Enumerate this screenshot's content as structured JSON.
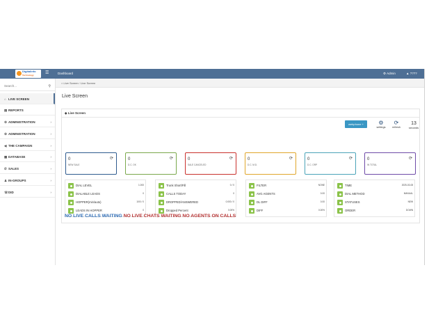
{
  "topbar": {
    "logo_text": "Digitalinfo",
    "logo_tag": "Technology",
    "title": "Dashboard",
    "admin_label": "Admin",
    "user_label": "????"
  },
  "sidebar": {
    "search_placeholder": "Search...",
    "items": [
      {
        "label": "LIVE SCREEN",
        "icon": "home-icon",
        "active": true,
        "chevron": false
      },
      {
        "label": "REPORTS",
        "icon": "report-icon",
        "active": false,
        "chevron": false
      },
      {
        "label": "ADMINISTRATION",
        "icon": "gear-icon",
        "active": false,
        "chevron": true
      },
      {
        "label": "ADMINISTRATION",
        "icon": "gear-icon",
        "active": false,
        "chevron": true
      },
      {
        "label": "THE CAMPAIGN",
        "icon": "megaphone-icon",
        "active": false,
        "chevron": true
      },
      {
        "label": "DATABASE",
        "icon": "database-icon",
        "active": false,
        "chevron": true
      },
      {
        "label": "SALES",
        "icon": "phone-icon",
        "active": false,
        "chevron": true
      },
      {
        "label": "IN-GROUPS",
        "icon": "users-icon",
        "active": false,
        "chevron": true
      },
      {
        "label": "DID",
        "icon": "phone-forward-icon",
        "active": false,
        "chevron": true
      }
    ]
  },
  "breadcrumb": {
    "home": "Live Screen",
    "current": "Live Screen"
  },
  "page_title": "Live Screen",
  "panel": {
    "title": "Live Screen",
    "webphone_label": "webphone +",
    "settings_label": "settings",
    "refresh_label": "refresh",
    "seconds_value": "13",
    "seconds_label": "seconds"
  },
  "cards": [
    {
      "value": "0",
      "label": "NEW SALE",
      "color": "#2e5a8e"
    },
    {
      "value": "0",
      "label": "D.C. OK",
      "color": "#7aa84b"
    },
    {
      "value": "0",
      "label": "SALE CANCELED",
      "color": "#c9302c"
    },
    {
      "value": "0",
      "label": "D.C. M.D.",
      "color": "#e0a62a"
    },
    {
      "value": "0",
      "label": "D.C. ORP",
      "color": "#4aa3b8"
    },
    {
      "value": "0",
      "label": "IN TOTAL",
      "color": "#6e4aa8"
    }
  ],
  "stats": [
    [
      {
        "key": "DIAL LEVEL",
        "value": "1.000"
      },
      {
        "key": "DIALABLE LEADS",
        "value": "0"
      },
      {
        "key": "HOPPER(min/auto)",
        "value": "10/0 / 0"
      },
      {
        "key": "LEADS IN HOPPER",
        "value": "0"
      }
    ],
    [
      {
        "key": "Trunk Short/Fill",
        "value": "0 / 0"
      },
      {
        "key": "CALLS TODAY",
        "value": "0"
      },
      {
        "key": "DROPPED/ANSWERED",
        "value": "0.000 / 0"
      },
      {
        "key": "Dropped Percent",
        "value": "0.00%"
      }
    ],
    [
      {
        "key": "FILTER",
        "value": "NONE"
      },
      {
        "key": "AVG AGENTS",
        "value": "0.00"
      },
      {
        "key": "DL DIFF",
        "value": "0.00"
      },
      {
        "key": "DIFF",
        "value": "0.00%"
      }
    ],
    [
      {
        "key": "TIME",
        "value": "2025-03-08"
      },
      {
        "key": "DIAL METHOD",
        "value": "MANUAL"
      },
      {
        "key": "STATUSES",
        "value": "NEW"
      },
      {
        "key": "ORDER",
        "value": "DOWN"
      }
    ]
  ],
  "status_line": {
    "part1": "NO LIVE CALLS WAITING",
    "part2": "NO LIVE CHATS WAITING NO AGENTS ON CALLS"
  }
}
